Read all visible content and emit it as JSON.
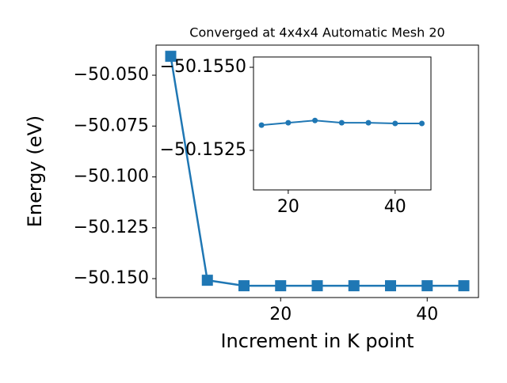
{
  "chart_data": [
    {
      "type": "line",
      "title": "Converged at 4x4x4 Automatic Mesh 20",
      "x_label": "Increment in K point",
      "y_label": "Energy (eV)",
      "x": [
        5,
        10,
        15,
        20,
        25,
        30,
        35,
        40,
        45
      ],
      "series": [
        {
          "name": "Energy",
          "color": "#1f77b4",
          "marker": "square",
          "values": [
            -50.0407,
            -50.1508,
            -50.1535,
            -50.1535,
            -50.1535,
            -50.1535,
            -50.1535,
            -50.1535,
            -50.1535
          ]
        }
      ],
      "xlim": [
        3,
        47
      ],
      "ylim": [
        -50.1593,
        -50.0352
      ],
      "xticks": [
        20,
        40
      ],
      "yticks": [
        {
          "value": -50.05,
          "label": "−50.050"
        },
        {
          "value": -50.075,
          "label": "−50.075"
        },
        {
          "value": -50.1,
          "label": "−50.100"
        },
        {
          "value": -50.125,
          "label": "−50.125"
        },
        {
          "value": -50.15,
          "label": "−50.150"
        }
      ]
    },
    {
      "type": "line",
      "x": [
        15,
        20,
        25,
        30,
        35,
        40,
        45
      ],
      "series": [
        {
          "name": "Energy",
          "color": "#1f77b4",
          "marker": "circle",
          "values": [
            -50.15326,
            -50.15333,
            -50.1534,
            -50.15333,
            -50.15333,
            -50.15331,
            -50.15331
          ]
        }
      ],
      "xlim": [
        13.5,
        46.7
      ],
      "ylim": [
        -50.15131,
        -50.15531
      ],
      "xticks": [
        20,
        40
      ],
      "yticks": [
        {
          "value": -50.155,
          "label": "−50.1550"
        },
        {
          "value": -50.1525,
          "label": "−50.1525"
        }
      ]
    }
  ]
}
